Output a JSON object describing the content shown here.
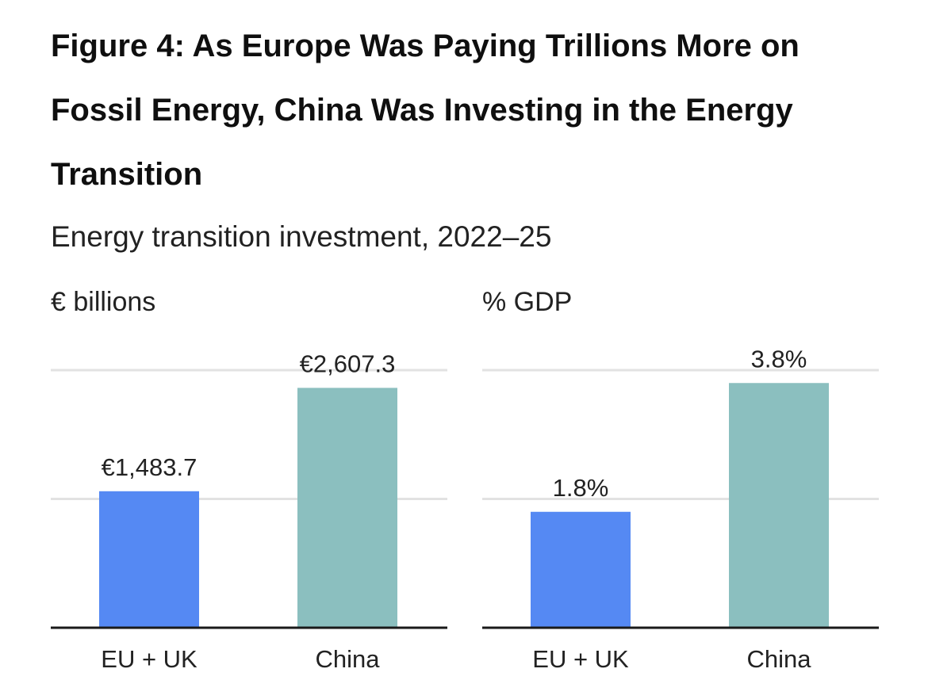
{
  "title": "Figure 4: As Europe Was Paying Trillions More on Fossil Energy, China Was Investing in the Energy Transition",
  "subtitle": "Energy transition investment, 2022–25",
  "colors": {
    "eu_uk": "#5589f3",
    "china": "#8bbfbf"
  },
  "chart_data": [
    {
      "type": "bar",
      "unit_label": "€ billions",
      "categories": [
        "EU + UK",
        "China"
      ],
      "values": [
        1483.7,
        2607.3
      ],
      "value_labels": [
        "€1,483.7",
        "€2,607.3"
      ],
      "ylim": [
        0,
        2800
      ],
      "gridlines": [
        1400,
        2800
      ],
      "grid": true
    },
    {
      "type": "bar",
      "unit_label": "% GDP",
      "categories": [
        "EU + UK",
        "China"
      ],
      "values": [
        1.8,
        3.8
      ],
      "value_labels": [
        "1.8%",
        "3.8%"
      ],
      "ylim": [
        0,
        4
      ],
      "gridlines": [
        2,
        4
      ],
      "grid": true
    }
  ]
}
